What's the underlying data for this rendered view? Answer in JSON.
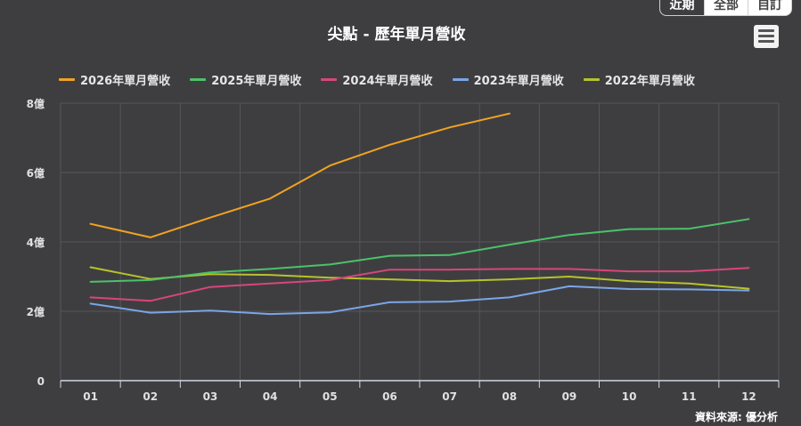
{
  "tabs": [
    {
      "label": "近期",
      "active": true
    },
    {
      "label": "全部",
      "active": false
    },
    {
      "label": "自訂",
      "active": false
    }
  ],
  "menu_icon": "hamburger-menu-icon",
  "credit": "資料來源: 優分析",
  "chart_data": {
    "type": "line",
    "title": "尖點 - 歷年單月營收",
    "xlabel": "",
    "ylabel": "",
    "categories": [
      "01",
      "02",
      "03",
      "04",
      "05",
      "06",
      "07",
      "08",
      "09",
      "10",
      "11",
      "12"
    ],
    "ylim": [
      0,
      8
    ],
    "yticks": [
      {
        "value": 0,
        "label": "0"
      },
      {
        "value": 2,
        "label": "2億"
      },
      {
        "value": 4,
        "label": "4億"
      },
      {
        "value": 6,
        "label": "6億"
      },
      {
        "value": 8,
        "label": "8億"
      }
    ],
    "grid": true,
    "legend_position": "top",
    "series": [
      {
        "name": "2026年單月營收",
        "color": "#f2a31f",
        "values": [
          4.52,
          4.13,
          4.7,
          5.25,
          6.2,
          6.8,
          7.3,
          7.7,
          null,
          null,
          null,
          null
        ]
      },
      {
        "name": "2025年單月營收",
        "color": "#4bc26a",
        "values": [
          2.85,
          2.9,
          3.12,
          3.22,
          3.35,
          3.6,
          3.62,
          3.92,
          4.2,
          4.37,
          4.38,
          4.66
        ]
      },
      {
        "name": "2024年單月營收",
        "color": "#d8467a",
        "values": [
          2.4,
          2.3,
          2.7,
          2.8,
          2.9,
          3.2,
          3.2,
          3.22,
          3.22,
          3.15,
          3.15,
          3.25
        ]
      },
      {
        "name": "2023年單月營收",
        "color": "#7aa6e6",
        "values": [
          2.22,
          1.96,
          2.02,
          1.92,
          1.97,
          2.26,
          2.28,
          2.4,
          2.72,
          2.64,
          2.63,
          2.6
        ]
      },
      {
        "name": "2022年單月營收",
        "color": "#b7c32a",
        "values": [
          3.27,
          2.93,
          3.07,
          3.05,
          2.97,
          2.92,
          2.87,
          2.92,
          3.0,
          2.87,
          2.8,
          2.65
        ]
      }
    ]
  }
}
